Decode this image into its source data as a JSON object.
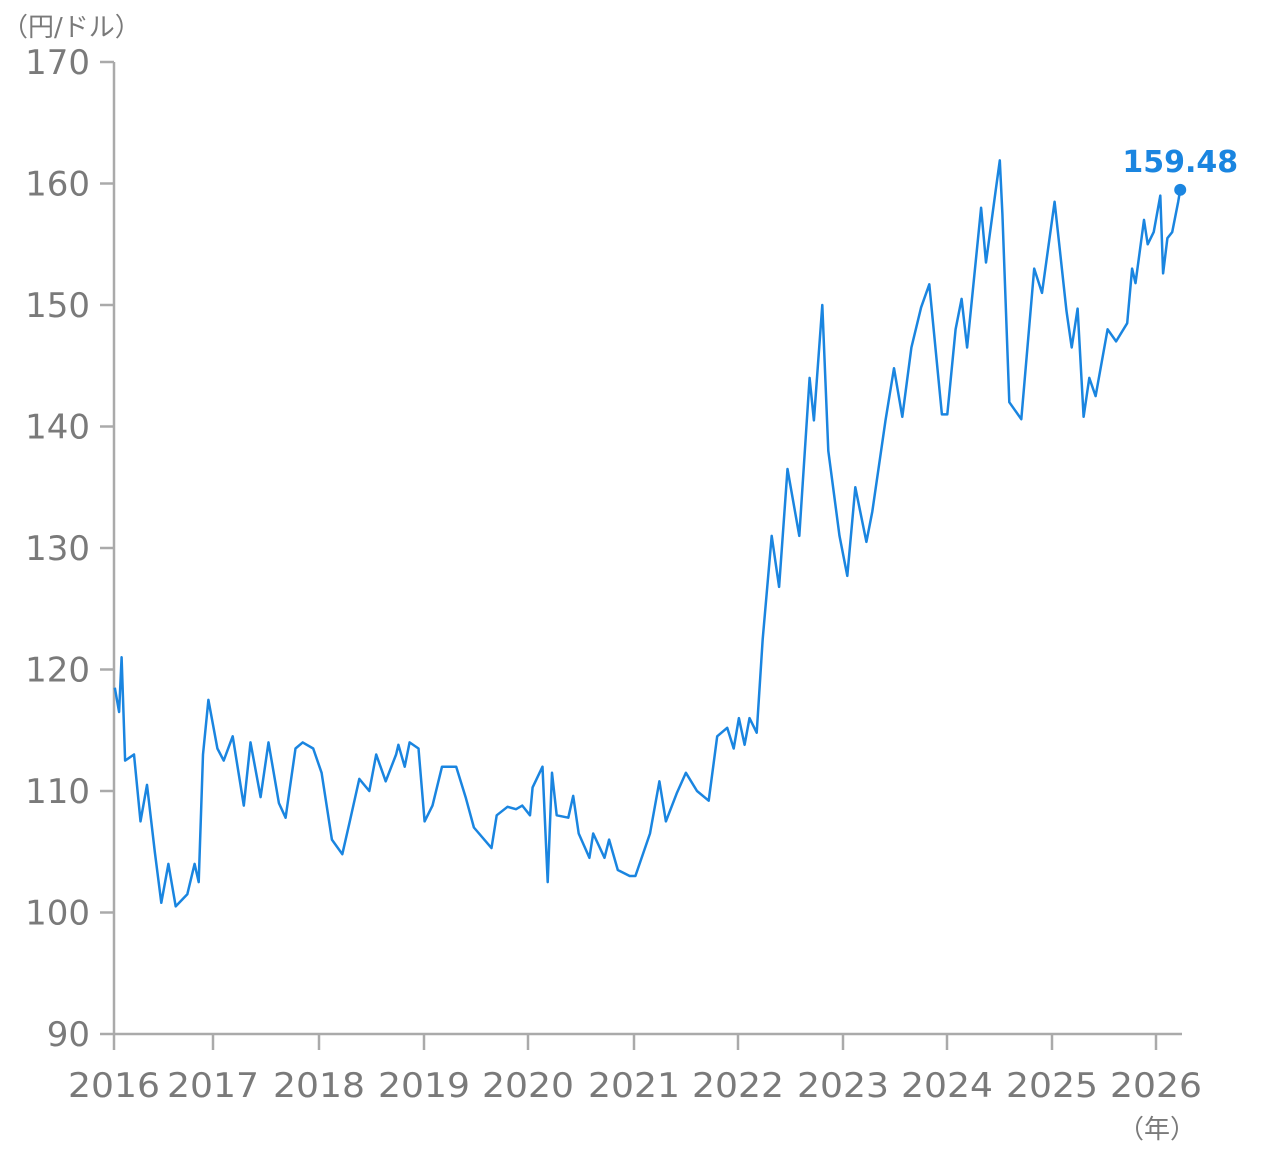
{
  "chart_data": {
    "type": "line",
    "title": "",
    "ylabel": "（円/ドル）",
    "xlabel": "（年）",
    "ylim": [
      90,
      170
    ],
    "yticks": [
      90,
      100,
      110,
      120,
      130,
      140,
      150,
      160,
      170
    ],
    "xticks": [
      "2016",
      "2017",
      "2018",
      "2019",
      "2020",
      "2021",
      "2022",
      "2023",
      "2024",
      "2025",
      "2026"
    ],
    "grid": false,
    "legend": "none",
    "line_color": "#1a85e0",
    "axis_color": "#aaaaaa",
    "last_value_label": "159.48",
    "series": [
      {
        "x": [
          "2016-01-04",
          "2016-01-20",
          "2016-01-29",
          "2016-02-11",
          "2016-03-15",
          "2016-04-08",
          "2016-05-02",
          "2016-05-31",
          "2016-06-24",
          "2016-07-20",
          "2016-08-16",
          "2016-09-28",
          "2016-10-25",
          "2016-11-09",
          "2016-11-25",
          "2016-12-15",
          "2017-01-16",
          "2017-02-07",
          "2017-03-10",
          "2017-04-17",
          "2017-05-10",
          "2017-06-14",
          "2017-07-11",
          "2017-08-16",
          "2017-09-08",
          "2017-10-12",
          "2017-11-06",
          "2017-12-12",
          "2018-01-10",
          "2018-02-15",
          "2018-03-23",
          "2018-04-18",
          "2018-05-21",
          "2018-06-25",
          "2018-07-19",
          "2018-08-21",
          "2018-09-26",
          "2018-10-04",
          "2018-10-26",
          "2018-11-12",
          "2018-12-13",
          "2019-01-03",
          "2019-01-31",
          "2019-03-05",
          "2019-04-24",
          "2019-05-27",
          "2019-06-25",
          "2019-08-26",
          "2019-09-13",
          "2019-10-21",
          "2019-11-20",
          "2019-12-12",
          "2020-01-08",
          "2020-01-17",
          "2020-02-20",
          "2020-03-09",
          "2020-03-24",
          "2020-04-09",
          "2020-05-19",
          "2020-06-05",
          "2020-06-24",
          "2020-07-31",
          "2020-08-13",
          "2020-09-21",
          "2020-10-07",
          "2020-11-06",
          "2020-12-17",
          "2021-01-06",
          "2021-02-26",
          "2021-03-31",
          "2021-04-23",
          "2021-05-31",
          "2021-07-02",
          "2021-08-10",
          "2021-09-20",
          "2021-10-20",
          "2021-11-24",
          "2021-12-17",
          "2022-01-04",
          "2022-01-24",
          "2022-02-10",
          "2022-03-07",
          "2022-03-28",
          "2022-04-28",
          "2022-05-24",
          "2022-06-22",
          "2022-08-02",
          "2022-09-07",
          "2022-09-22",
          "2022-10-21",
          "2022-11-11",
          "2022-12-20",
          "2023-01-16",
          "2023-02-13",
          "2023-03-24",
          "2023-04-14",
          "2023-05-30",
          "2023-06-29",
          "2023-07-28",
          "2023-08-29",
          "2023-10-02",
          "2023-10-31",
          "2023-12-14",
          "2024-01-02",
          "2024-01-31",
          "2024-02-21",
          "2024-03-11",
          "2024-04-29",
          "2024-05-16",
          "2024-06-19",
          "2024-07-03",
          "2024-07-12",
          "2024-08-05",
          "2024-09-16",
          "2024-10-31",
          "2024-11-27",
          "2025-01-10",
          "2025-02-21",
          "2025-03-11",
          "2025-04-01",
          "2025-04-22",
          "2025-05-12",
          "2025-06-03",
          "2025-07-15",
          "2025-08-14",
          "2025-09-22",
          "2025-10-09",
          "2025-10-21",
          "2025-11-20",
          "2025-12-03",
          "2025-12-24",
          "2026-01-16",
          "2026-01-26",
          "2026-02-10",
          "2026-02-27",
          "2026-03-20",
          "2026-03-27"
        ],
        "y": [
          118.5,
          116.5,
          121.0,
          112.5,
          113.0,
          107.5,
          110.5,
          105.0,
          100.8,
          104.0,
          100.5,
          101.5,
          104.0,
          102.5,
          113.0,
          117.5,
          113.5,
          112.5,
          114.5,
          108.8,
          114.0,
          109.5,
          114.0,
          109.0,
          107.8,
          113.5,
          114.0,
          113.5,
          111.5,
          106.0,
          104.8,
          107.5,
          111.0,
          110.0,
          113.0,
          110.8,
          113.0,
          113.8,
          112.0,
          114.0,
          113.5,
          107.5,
          108.8,
          112.0,
          112.0,
          109.5,
          107.0,
          105.3,
          108.0,
          108.7,
          108.5,
          108.8,
          108.0,
          110.3,
          112.0,
          102.5,
          111.5,
          108.0,
          107.8,
          109.6,
          106.5,
          104.5,
          106.5,
          104.5,
          106.0,
          103.5,
          103.0,
          103.0,
          106.5,
          110.8,
          107.5,
          109.8,
          111.5,
          110.0,
          109.2,
          114.5,
          115.2,
          113.5,
          116.0,
          113.8,
          116.0,
          114.8,
          122.5,
          131.0,
          126.8,
          136.5,
          131.0,
          144.0,
          140.5,
          150.0,
          138.0,
          131.0,
          127.7,
          135.0,
          130.5,
          133.0,
          140.5,
          144.8,
          140.8,
          146.5,
          149.8,
          151.7,
          141.0,
          141.0,
          148.0,
          150.5,
          146.5,
          158.0,
          153.5,
          159.5,
          161.9,
          157.5,
          142.0,
          140.6,
          153.0,
          151.0,
          158.5,
          149.5,
          146.5,
          149.7,
          140.8,
          144.0,
          142.5,
          148.0,
          147.0,
          148.5,
          153.0,
          151.8,
          157.0,
          155.0,
          156.0,
          159.0,
          152.6,
          155.5,
          156.0,
          158.5,
          159.48
        ]
      }
    ]
  }
}
